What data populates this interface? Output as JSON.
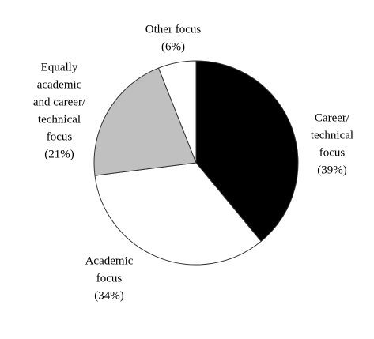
{
  "chart_data": {
    "type": "pie",
    "categories": [
      [
        "Career/",
        "technical",
        "focus"
      ],
      [
        "Academic",
        "focus"
      ],
      [
        "Equally",
        "academic",
        "and career/",
        "technical",
        "focus"
      ],
      [
        "Other focus"
      ]
    ],
    "values": [
      39,
      34,
      21,
      6
    ],
    "value_labels": [
      "(39%)",
      "(34%)",
      "(21%)",
      "(6%)"
    ],
    "colors": [
      "#000000",
      "#ffffff",
      "#c0c0c0",
      "#ffffff"
    ]
  }
}
